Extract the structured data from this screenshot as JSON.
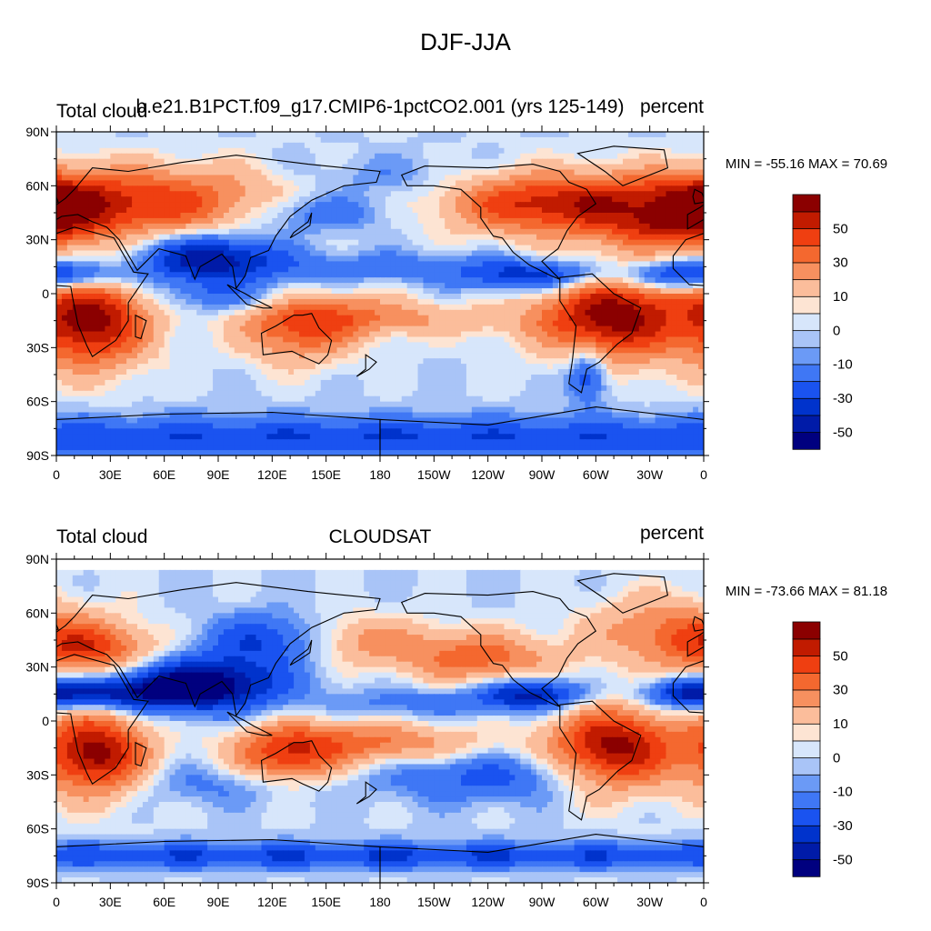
{
  "figure_title": "DJF-JJA",
  "chart_data": [
    {
      "type": "heatmap",
      "variable": "Total cloud",
      "center_title": "b.e21.B1PCT.f09_g17.CMIP6-1pctCO2.001 (yrs 125-149)",
      "units": "percent",
      "min_label": "MIN = -55.16",
      "max_label": "MAX =  70.69",
      "min": -55.16,
      "max": 70.69,
      "xticks": [
        "0",
        "30E",
        "60E",
        "90E",
        "120E",
        "150E",
        "180",
        "150W",
        "120W",
        "90W",
        "60W",
        "30W",
        "0"
      ],
      "yticks": [
        "90N",
        "60N",
        "30N",
        "0",
        "30S",
        "60S",
        "90S"
      ],
      "xlim_lon": [
        0,
        360
      ],
      "ylim_lat": [
        -90,
        90
      ],
      "colorbar_levels": [
        -60,
        -50,
        -40,
        -30,
        -20,
        -10,
        -5,
        0,
        5,
        10,
        20,
        30,
        40,
        50,
        60
      ],
      "colorbar_labels": [
        "50",
        "30",
        "10",
        "0",
        "-10",
        "-30",
        "-50"
      ],
      "field_blobs": [
        {
          "lon": 20,
          "lat": -15,
          "val": 65,
          "rl": 22,
          "rp": 18
        },
        {
          "lon": 310,
          "lat": -12,
          "val": 65,
          "rl": 28,
          "rp": 18
        },
        {
          "lon": 135,
          "lat": -22,
          "val": 35,
          "rl": 22,
          "rp": 12
        },
        {
          "lon": 45,
          "lat": 50,
          "val": 50,
          "rl": 60,
          "rp": 14
        },
        {
          "lon": 300,
          "lat": 50,
          "val": 40,
          "rl": 35,
          "rp": 12
        },
        {
          "lon": 250,
          "lat": 50,
          "val": 30,
          "rl": 30,
          "rp": 12
        },
        {
          "lon": 0,
          "lat": 50,
          "val": 30,
          "rl": 20,
          "rp": 12
        },
        {
          "lon": 340,
          "lat": 35,
          "val": 25,
          "rl": 25,
          "rp": 8
        },
        {
          "lon": 160,
          "lat": -10,
          "val": 18,
          "rl": 30,
          "rp": 8
        },
        {
          "lon": 200,
          "lat": -15,
          "val": 15,
          "rl": 60,
          "rp": 7
        },
        {
          "lon": 85,
          "lat": 20,
          "val": -50,
          "rl": 28,
          "rp": 10
        },
        {
          "lon": 270,
          "lat": 10,
          "val": -40,
          "rl": 30,
          "rp": 6
        },
        {
          "lon": 10,
          "lat": 10,
          "val": -35,
          "rl": 22,
          "rp": 6
        },
        {
          "lon": 340,
          "lat": 10,
          "val": -30,
          "rl": 20,
          "rp": 6
        },
        {
          "lon": 140,
          "lat": 45,
          "val": -25,
          "rl": 30,
          "rp": 8
        },
        {
          "lon": 180,
          "lat": 15,
          "val": -15,
          "rl": 50,
          "rp": 6
        },
        {
          "lon": 180,
          "lat": 65,
          "val": -10,
          "rl": 40,
          "rp": 8
        },
        {
          "lon": 295,
          "lat": -45,
          "val": -35,
          "rl": 8,
          "rp": 10
        },
        {
          "lon": 180,
          "lat": -80,
          "val": -30,
          "rl": 360,
          "rp": 8
        },
        {
          "lon": 90,
          "lat": -2,
          "val": -15,
          "rl": 25,
          "rp": 6
        }
      ]
    },
    {
      "type": "heatmap",
      "variable": "Total cloud",
      "center_title": "CLOUDSAT",
      "units": "percent",
      "min_label": "MIN = -73.66",
      "max_label": "MAX =  81.18",
      "min": -73.66,
      "max": 81.18,
      "xticks": [
        "0",
        "30E",
        "60E",
        "90E",
        "120E",
        "150E",
        "180",
        "150W",
        "120W",
        "90W",
        "60W",
        "30W",
        "0"
      ],
      "yticks": [
        "90N",
        "60N",
        "30N",
        "0",
        "30S",
        "60S",
        "90S"
      ],
      "xlim_lon": [
        0,
        360
      ],
      "ylim_lat": [
        -90,
        90
      ],
      "colorbar_levels": [
        -60,
        -50,
        -40,
        -30,
        -20,
        -10,
        -5,
        0,
        5,
        10,
        20,
        30,
        40,
        50,
        60
      ],
      "colorbar_labels": [
        "50",
        "30",
        "10",
        "0",
        "-10",
        "-30",
        "-50"
      ],
      "field_blobs": [
        {
          "lon": 22,
          "lat": -18,
          "val": 65,
          "rl": 20,
          "rp": 16
        },
        {
          "lon": 310,
          "lat": -15,
          "val": 65,
          "rl": 25,
          "rp": 16
        },
        {
          "lon": 128,
          "lat": -20,
          "val": 45,
          "rl": 22,
          "rp": 12
        },
        {
          "lon": 20,
          "lat": 40,
          "val": 40,
          "rl": 25,
          "rp": 10
        },
        {
          "lon": 235,
          "lat": 35,
          "val": 35,
          "rl": 30,
          "rp": 10
        },
        {
          "lon": 340,
          "lat": 50,
          "val": 30,
          "rl": 30,
          "rp": 14
        },
        {
          "lon": 165,
          "lat": 45,
          "val": 25,
          "rl": 30,
          "rp": 10
        },
        {
          "lon": 170,
          "lat": -10,
          "val": 20,
          "rl": 35,
          "rp": 8
        },
        {
          "lon": 200,
          "lat": -15,
          "val": 15,
          "rl": 40,
          "rp": 8
        },
        {
          "lon": 80,
          "lat": 20,
          "val": -65,
          "rl": 30,
          "rp": 10
        },
        {
          "lon": 120,
          "lat": 45,
          "val": -35,
          "rl": 25,
          "rp": 10
        },
        {
          "lon": 265,
          "lat": 15,
          "val": -45,
          "rl": 20,
          "rp": 6
        },
        {
          "lon": 350,
          "lat": 15,
          "val": -40,
          "rl": 18,
          "rp": 6
        },
        {
          "lon": 30,
          "lat": 15,
          "val": -35,
          "rl": 25,
          "rp": 6
        },
        {
          "lon": 205,
          "lat": 10,
          "val": -15,
          "rl": 40,
          "rp": 6
        },
        {
          "lon": 240,
          "lat": -30,
          "val": -25,
          "rl": 40,
          "rp": 10
        },
        {
          "lon": 180,
          "lat": -75,
          "val": -30,
          "rl": 360,
          "rp": 5
        },
        {
          "lon": 100,
          "lat": -35,
          "val": -15,
          "rl": 40,
          "rp": 8
        }
      ]
    }
  ],
  "colors": {
    "palette": [
      "#00007f",
      "#001ba8",
      "#0033cc",
      "#1a53f0",
      "#3f77f5",
      "#6b9af6",
      "#a9c4f7",
      "#d7e6fb",
      "#fde4d3",
      "#fbbd9b",
      "#f7905f",
      "#f4682f",
      "#ef3f11",
      "#c11b00",
      "#8b0000"
    ]
  }
}
